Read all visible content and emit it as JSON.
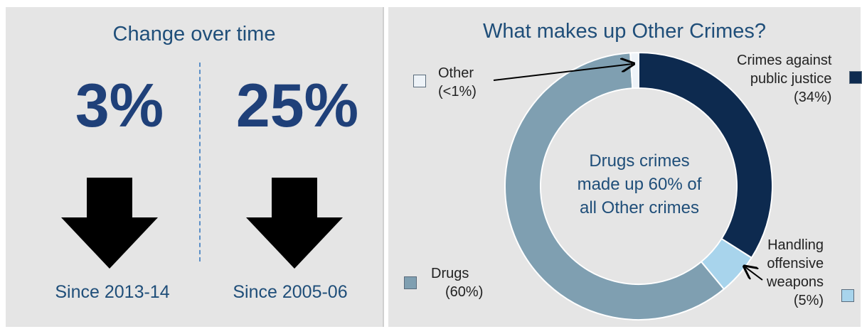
{
  "left": {
    "title": "Change over time",
    "items": [
      {
        "value": "3%",
        "period": "Since 2013-14"
      },
      {
        "value": "25%",
        "period": "Since 2005-06"
      }
    ]
  },
  "right": {
    "title": "What makes up Other Crimes?",
    "center_text": [
      "Drugs crimes",
      "made up 60% of",
      "all Other crimes"
    ]
  },
  "labels": {
    "other_line1": "Other",
    "other_line2": "(<1%)",
    "justice_line1": "Crimes against",
    "justice_line2": "public justice",
    "justice_line3": "(34%)",
    "weapons_line1": "Handling",
    "weapons_line2": "offensive",
    "weapons_line3": "weapons",
    "weapons_line4": "(5%)",
    "drugs_line1": "Drugs",
    "drugs_line2": "(60%)"
  },
  "chart_data": {
    "type": "pie",
    "title": "What makes up Other Crimes?",
    "categories": [
      "Crimes against public justice",
      "Handling offensive weapons",
      "Drugs",
      "Other"
    ],
    "values": [
      34,
      5,
      60,
      1
    ],
    "colors": [
      "#0d2a4f",
      "#a8d4ec",
      "#7f9fb1",
      "#eef3f8"
    ],
    "donut": true
  }
}
